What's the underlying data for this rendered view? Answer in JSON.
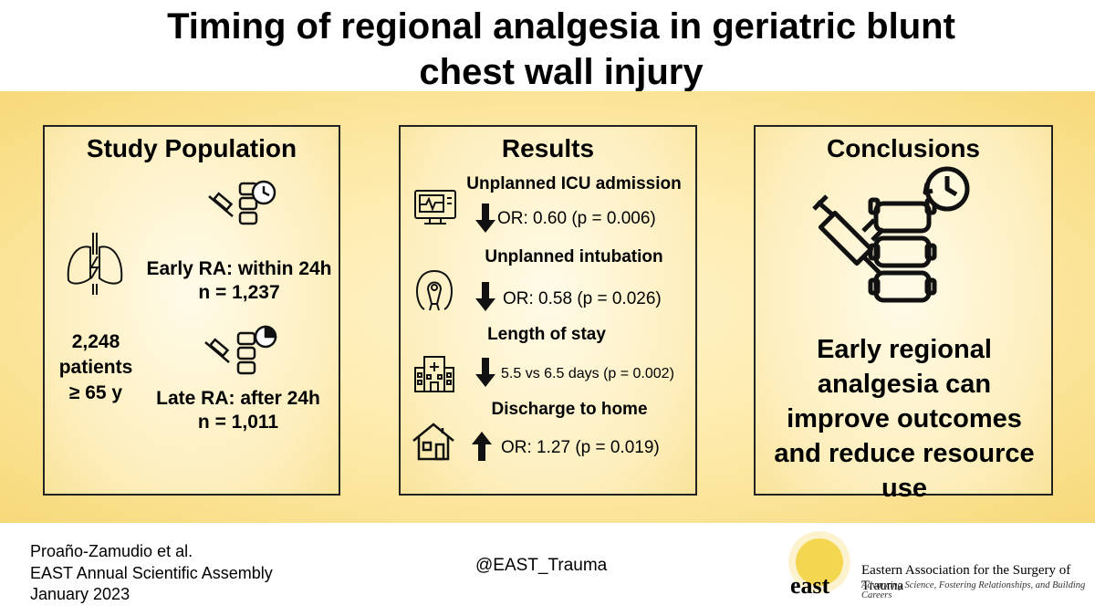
{
  "title_line1": "Timing of regional analgesia in geriatric blunt",
  "title_line2": "chest wall injury",
  "study": {
    "heading": "Study Population",
    "early_label": "Early RA: within 24h",
    "early_n": "n = 1,237",
    "late_label": "Late RA: after 24h",
    "late_n": "n = 1,011",
    "total_line1": "2,248",
    "total_line2": "patients",
    "total_line3": "≥ 65 y"
  },
  "results": {
    "heading": "Results",
    "items": [
      {
        "label": "Unplanned ICU admission",
        "value": "OR: 0.60 (p = 0.006)",
        "direction": "down",
        "icon": "monitor-icon"
      },
      {
        "label": "Unplanned intubation",
        "value": "OR: 0.58 (p = 0.026)",
        "direction": "down",
        "icon": "oxygen-mask-icon"
      },
      {
        "label": "Length of stay",
        "value": "5.5 vs 6.5 days (p = 0.002)",
        "direction": "down",
        "icon": "hospital-icon"
      },
      {
        "label": "Discharge to home",
        "value": "OR: 1.27 (p = 0.019)",
        "direction": "up",
        "icon": "house-icon"
      }
    ]
  },
  "conclusions": {
    "heading": "Conclusions",
    "line1": "Early regional",
    "line2": "analgesia can",
    "line3": "improve outcomes",
    "line4": "and reduce resource",
    "line5": "use"
  },
  "footer": {
    "author": "Proaño-Zamudio  et al.",
    "meeting": "EAST Annual  Scientific Assembly",
    "date": "January 2023",
    "handle": "@EAST_Trauma",
    "org_name": "Eastern Association for the Surgery of Trauma",
    "org_tagline": "Advancing Science, Fostering Relationships, and Building Careers",
    "org_short": "east"
  },
  "colors": {
    "band": "#f7d97a",
    "panel_border": "#222222",
    "logo_sun": "#f5d13a"
  }
}
